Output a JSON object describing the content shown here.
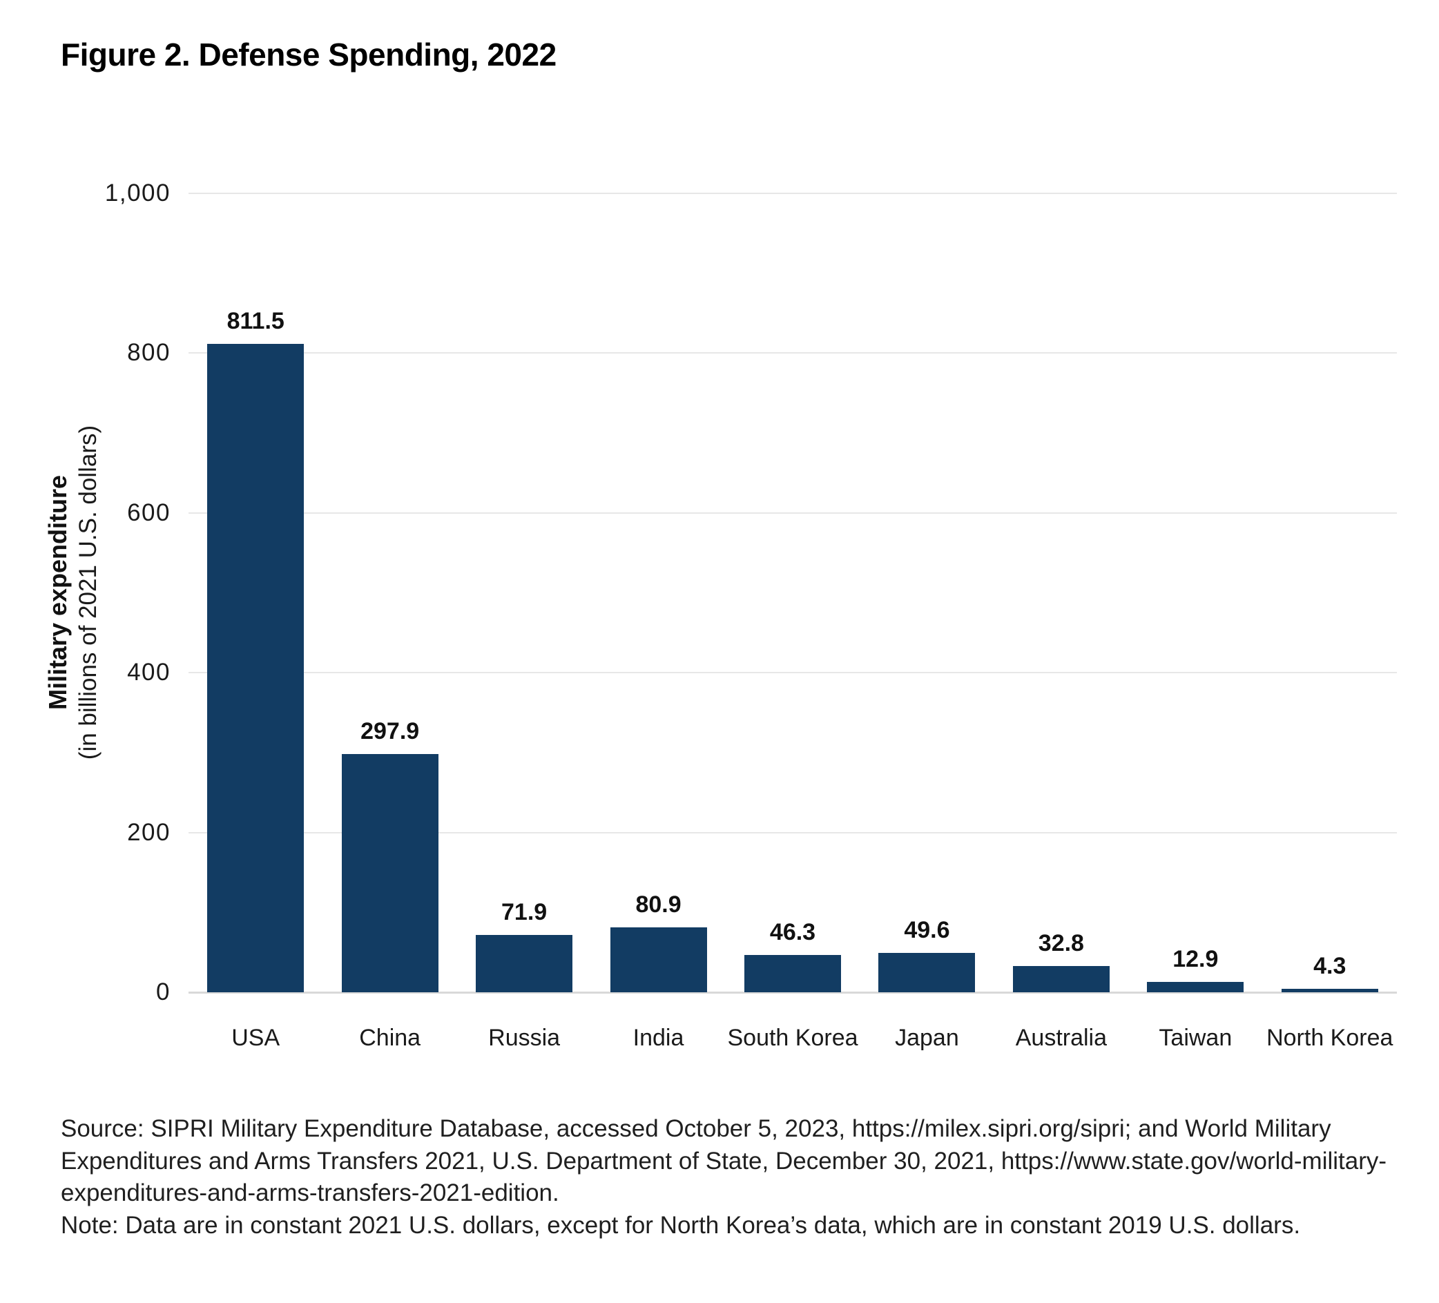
{
  "title": "Figure 2. Defense Spending, 2022",
  "chart_data": {
    "type": "bar",
    "title": "Figure 2. Defense Spending, 2022",
    "categories": [
      "USA",
      "China",
      "Russia",
      "India",
      "South Korea",
      "Japan",
      "Australia",
      "Taiwan",
      "North Korea"
    ],
    "values": [
      811.5,
      297.9,
      71.9,
      80.9,
      46.3,
      49.6,
      32.8,
      12.9,
      4.3
    ],
    "value_labels": [
      "811.5",
      "297.9",
      "71.9",
      "80.9",
      "46.3",
      "49.6",
      "32.8",
      "12.9",
      "4.3"
    ],
    "ylabel": "Military expenditure",
    "ylabel_sub": "(in billions of 2021 U.S. dollars)",
    "xlabel": "",
    "ylim": [
      0,
      1000
    ],
    "yticks": [
      {
        "value": 0,
        "label": "0"
      },
      {
        "value": 200,
        "label": "200"
      },
      {
        "value": 400,
        "label": "400"
      },
      {
        "value": 600,
        "label": "600"
      },
      {
        "value": 800,
        "label": "800"
      },
      {
        "value": 1000,
        "label": "1,000"
      }
    ],
    "grid": true,
    "legend": "none",
    "colors": {
      "bar": "#123C63",
      "gridline": "#e7e7e7",
      "axis_line": "#d9d9d9",
      "tick_text": "#1a1a1a"
    }
  },
  "footer": {
    "source_lines": [
      "Source: SIPRI Military Expenditure Database, accessed October 5, 2023, https://milex.sipri.org/sipri; and World Military",
      "Expenditures and Arms Transfers 2021, U.S. Department of State, December 30, 2021, https://www.state.gov/world-military-",
      "expenditures-and-arms-transfers-2021-edition."
    ],
    "note": "Note: Data are in constant 2021 U.S. dollars, except for North Korea’s data, which are in constant 2019 U.S. dollars."
  }
}
